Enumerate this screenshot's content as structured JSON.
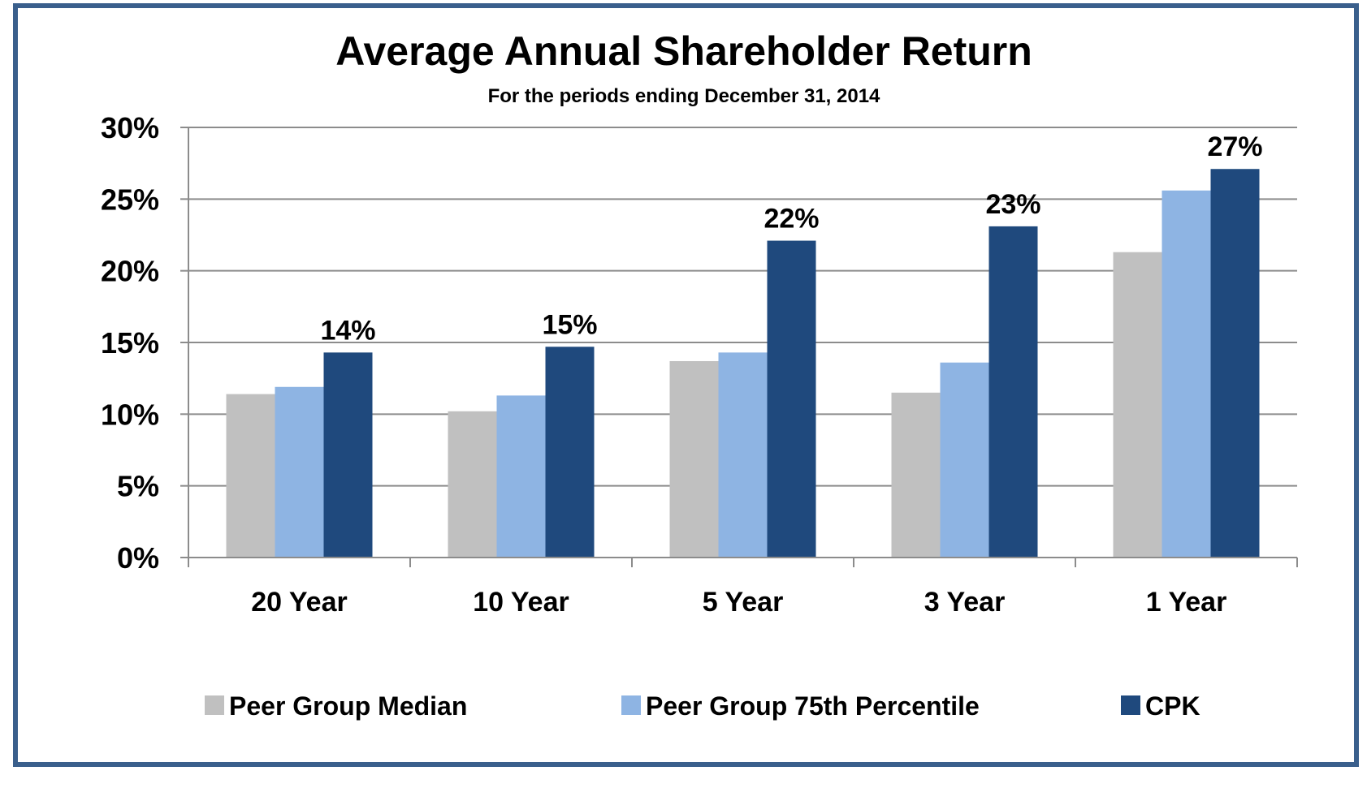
{
  "chart_data": {
    "type": "bar",
    "title": "Average Annual Shareholder Return",
    "subtitle": "For the periods ending December 31, 2014",
    "categories": [
      "20 Year",
      "10 Year",
      "5 Year",
      "3 Year",
      "1 Year"
    ],
    "series": [
      {
        "name": "Peer Group Median",
        "values": [
          11.4,
          10.2,
          13.7,
          11.5,
          21.3
        ],
        "color": "#c0c0c0"
      },
      {
        "name": "Peer Group 75th Percentile",
        "values": [
          11.9,
          11.3,
          14.3,
          13.6,
          25.6
        ],
        "color": "#8eb4e3"
      },
      {
        "name": "CPK",
        "values": [
          14.3,
          14.7,
          22.1,
          23.1,
          27.1
        ],
        "color": "#1f497d"
      }
    ],
    "data_labels": {
      "series": "CPK",
      "labels": [
        "14%",
        "15%",
        "22%",
        "23%",
        "27%"
      ]
    },
    "ylim": [
      0,
      30
    ],
    "yticks": [
      "0%",
      "5%",
      "10%",
      "15%",
      "20%",
      "25%",
      "30%"
    ],
    "ytick_values": [
      0,
      5,
      10,
      15,
      20,
      25,
      30
    ],
    "grid": true,
    "legend": "bottom",
    "frame_color": "#3a5f8c"
  }
}
